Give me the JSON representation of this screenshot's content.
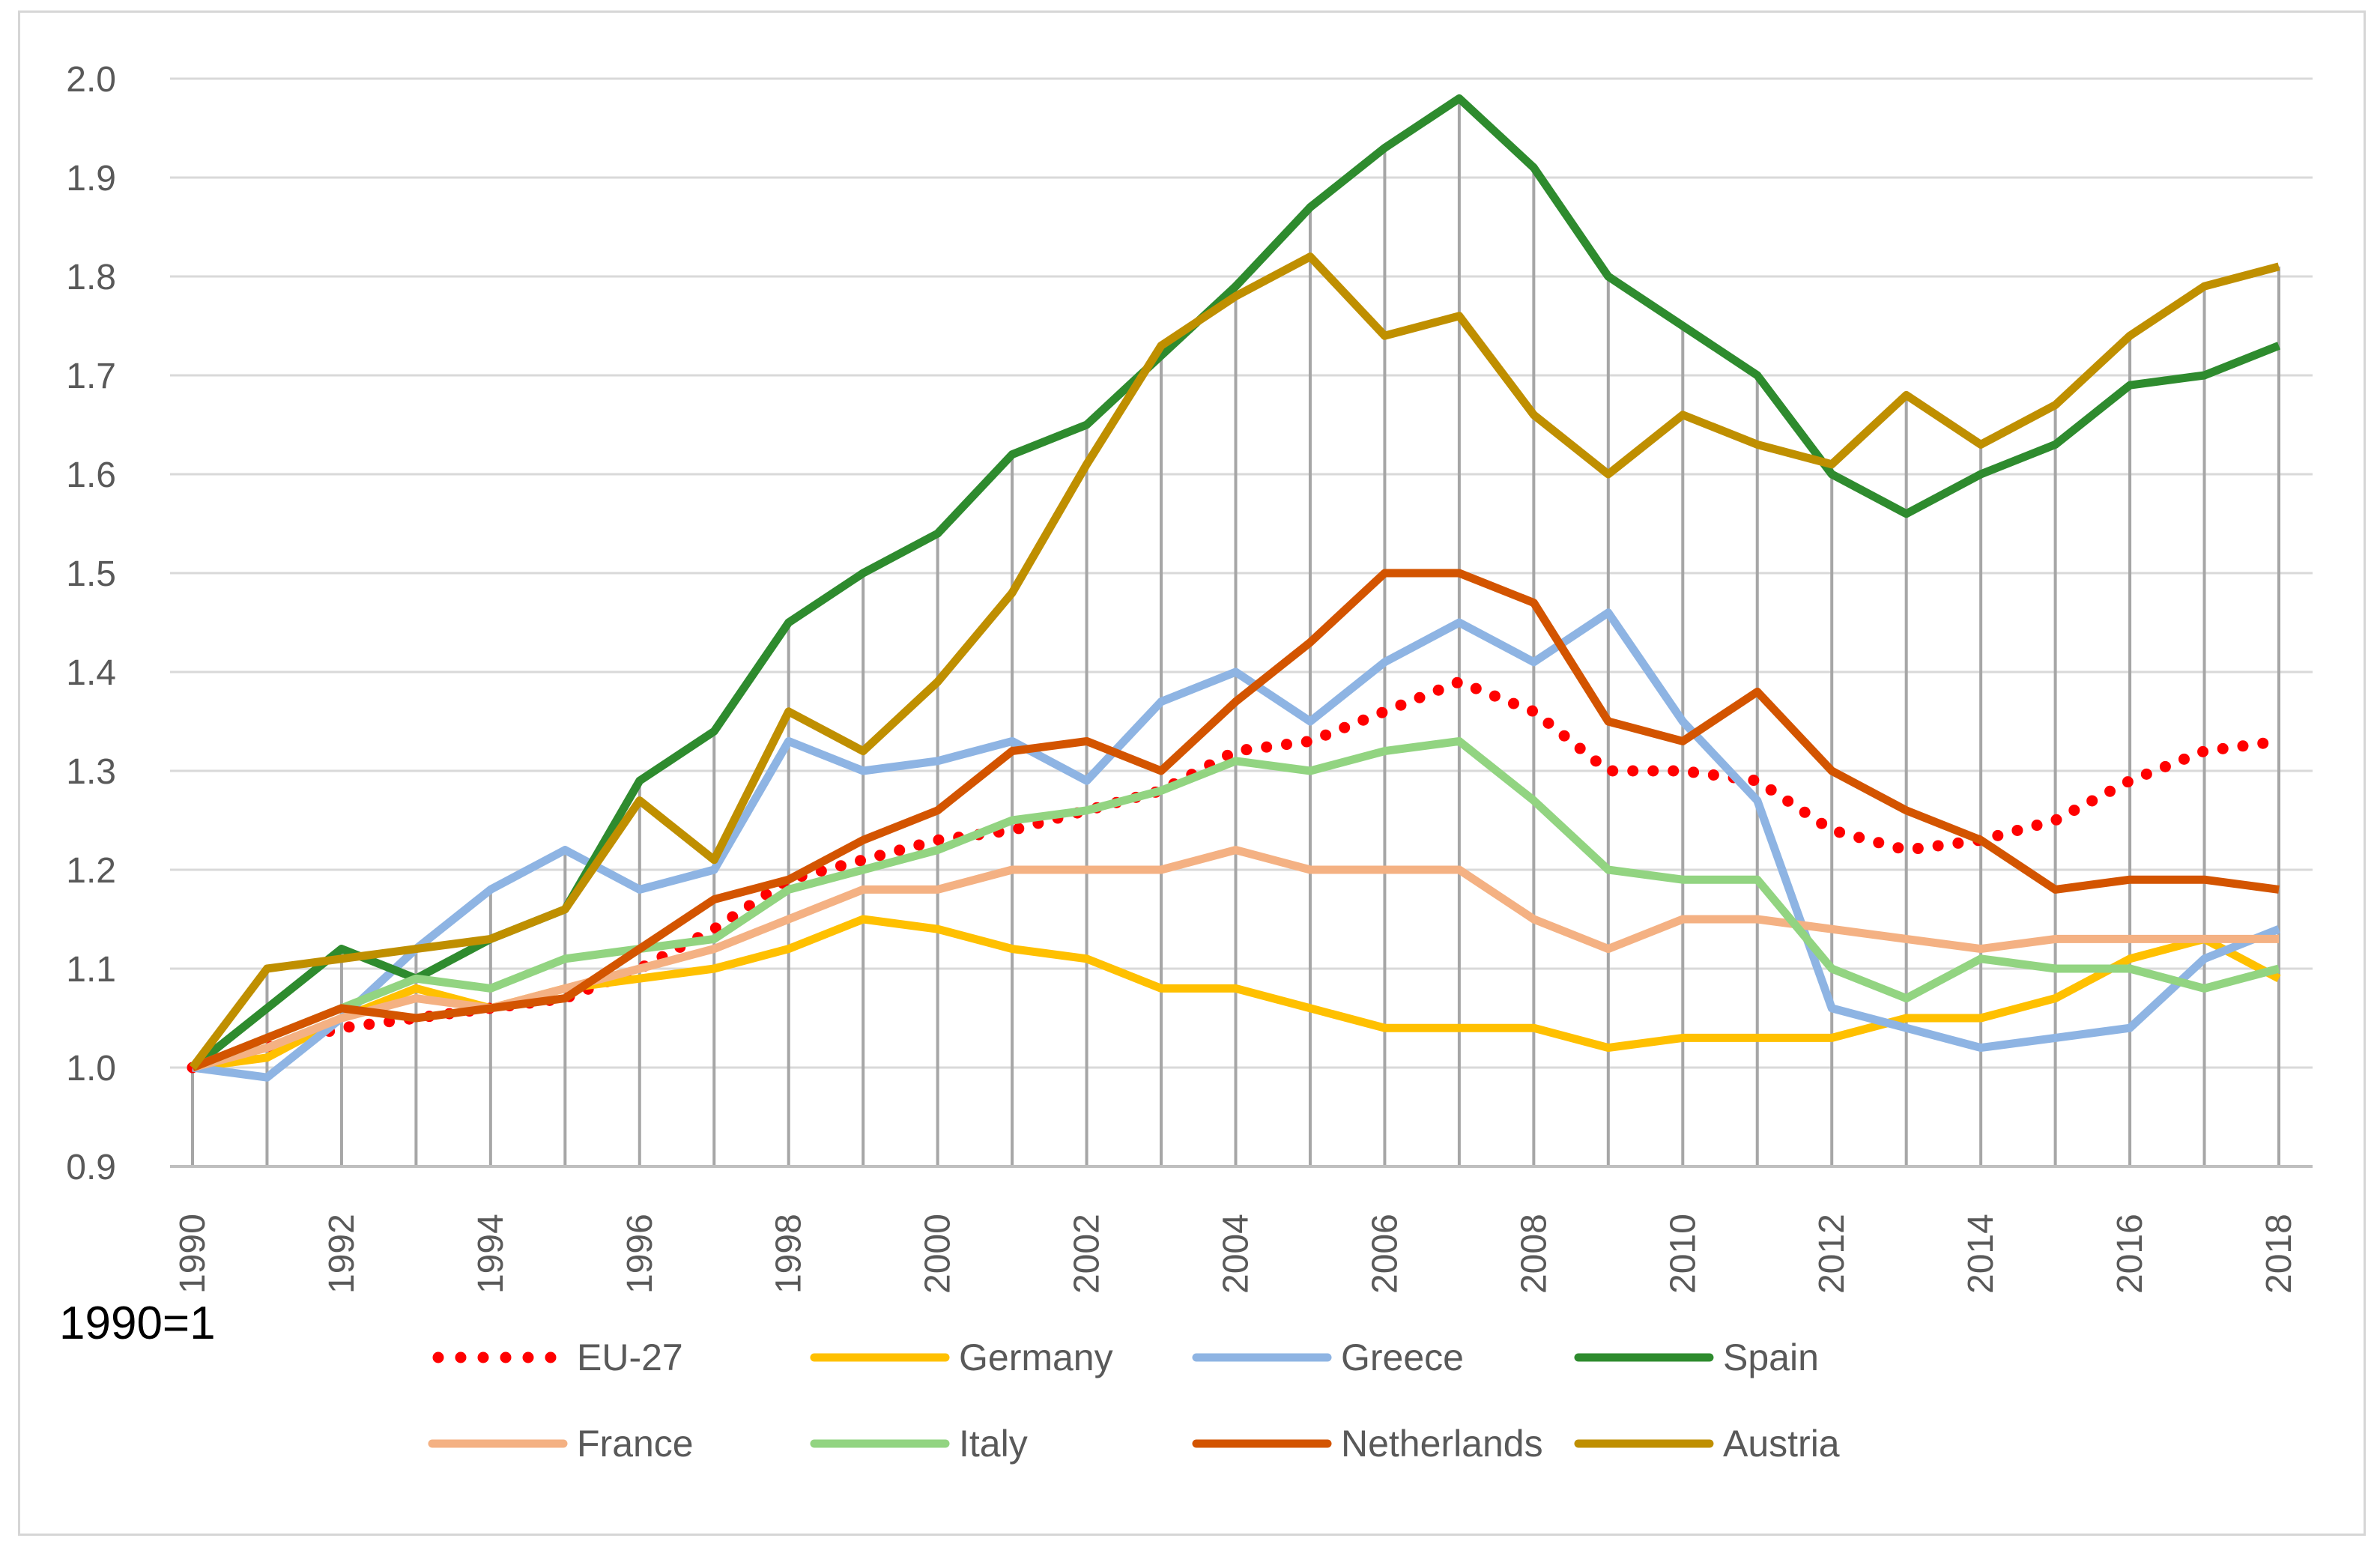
{
  "chart_data": {
    "type": "line",
    "title": "",
    "xlabel": "",
    "ylabel": "",
    "note": "1990=1",
    "ylim": [
      0.9,
      2.0
    ],
    "yticks": [
      "0.9",
      "1.0",
      "1.1",
      "1.2",
      "1.3",
      "1.4",
      "1.5",
      "1.6",
      "1.7",
      "1.8",
      "1.9",
      "2.0"
    ],
    "x": [
      1990,
      1991,
      1992,
      1993,
      1994,
      1995,
      1996,
      1997,
      1998,
      1999,
      2000,
      2001,
      2002,
      2003,
      2004,
      2005,
      2006,
      2007,
      2008,
      2009,
      2010,
      2011,
      2012,
      2013,
      2014,
      2015,
      2016,
      2017,
      2018
    ],
    "xtick_labels": [
      "1990",
      "1992",
      "1994",
      "1996",
      "1998",
      "2000",
      "2002",
      "2004",
      "2006",
      "2008",
      "2010",
      "2012",
      "2014",
      "2016",
      "2018"
    ],
    "grid": "vertical",
    "legend_position": "bottom",
    "series": [
      {
        "name": "EU-27",
        "color": "#ff0000",
        "style": "dotted",
        "values": [
          1.0,
          1.02,
          1.04,
          1.05,
          1.06,
          1.07,
          1.1,
          1.14,
          1.19,
          1.21,
          1.23,
          1.24,
          1.26,
          1.28,
          1.32,
          1.33,
          1.36,
          1.39,
          1.36,
          1.3,
          1.3,
          1.29,
          1.24,
          1.22,
          1.23,
          1.25,
          1.29,
          1.32,
          1.33
        ]
      },
      {
        "name": "Germany",
        "color": "#ffc000",
        "style": "solid",
        "values": [
          1.0,
          1.01,
          1.05,
          1.08,
          1.06,
          1.08,
          1.09,
          1.1,
          1.12,
          1.15,
          1.14,
          1.12,
          1.11,
          1.08,
          1.08,
          1.06,
          1.04,
          1.04,
          1.04,
          1.02,
          1.03,
          1.03,
          1.03,
          1.05,
          1.05,
          1.07,
          1.11,
          1.13,
          1.09
        ]
      },
      {
        "name": "Greece",
        "color": "#8eb4e3",
        "style": "solid",
        "values": [
          1.0,
          0.99,
          1.05,
          1.12,
          1.18,
          1.22,
          1.18,
          1.2,
          1.33,
          1.3,
          1.31,
          1.33,
          1.29,
          1.37,
          1.4,
          1.35,
          1.41,
          1.45,
          1.41,
          1.46,
          1.35,
          1.27,
          1.06,
          1.04,
          1.02,
          1.03,
          1.04,
          1.11,
          1.14
        ]
      },
      {
        "name": "Spain",
        "color": "#2e8b2e",
        "style": "solid",
        "values": [
          1.0,
          1.06,
          1.12,
          1.09,
          1.13,
          1.16,
          1.29,
          1.34,
          1.45,
          1.5,
          1.54,
          1.62,
          1.65,
          1.72,
          1.79,
          1.87,
          1.93,
          1.98,
          1.91,
          1.8,
          1.75,
          1.7,
          1.6,
          1.56,
          1.6,
          1.63,
          1.69,
          1.7,
          1.73
        ]
      },
      {
        "name": "France",
        "color": "#f4b183",
        "style": "solid",
        "values": [
          1.0,
          1.02,
          1.05,
          1.07,
          1.06,
          1.08,
          1.1,
          1.12,
          1.15,
          1.18,
          1.18,
          1.2,
          1.2,
          1.2,
          1.22,
          1.2,
          1.2,
          1.2,
          1.15,
          1.12,
          1.15,
          1.15,
          1.14,
          1.13,
          1.12,
          1.13,
          1.13,
          1.13,
          1.13
        ]
      },
      {
        "name": "Italy",
        "color": "#92d481",
        "style": "solid",
        "values": [
          1.0,
          1.03,
          1.06,
          1.09,
          1.08,
          1.11,
          1.12,
          1.13,
          1.18,
          1.2,
          1.22,
          1.25,
          1.26,
          1.28,
          1.31,
          1.3,
          1.32,
          1.33,
          1.27,
          1.2,
          1.19,
          1.19,
          1.1,
          1.07,
          1.11,
          1.1,
          1.1,
          1.08,
          1.1
        ]
      },
      {
        "name": "Netherlands",
        "color": "#d35400",
        "style": "solid",
        "values": [
          1.0,
          1.03,
          1.06,
          1.05,
          1.06,
          1.07,
          1.12,
          1.17,
          1.19,
          1.23,
          1.26,
          1.32,
          1.33,
          1.3,
          1.37,
          1.43,
          1.5,
          1.5,
          1.47,
          1.35,
          1.33,
          1.38,
          1.3,
          1.26,
          1.23,
          1.18,
          1.19,
          1.19,
          1.18
        ]
      },
      {
        "name": "Austria",
        "color": "#bf8f00",
        "style": "solid",
        "values": [
          1.0,
          1.1,
          1.11,
          1.12,
          1.13,
          1.16,
          1.27,
          1.21,
          1.36,
          1.32,
          1.39,
          1.48,
          1.61,
          1.73,
          1.78,
          1.82,
          1.74,
          1.76,
          1.66,
          1.6,
          1.66,
          1.63,
          1.61,
          1.68,
          1.63,
          1.67,
          1.74,
          1.79,
          1.81
        ]
      }
    ]
  }
}
